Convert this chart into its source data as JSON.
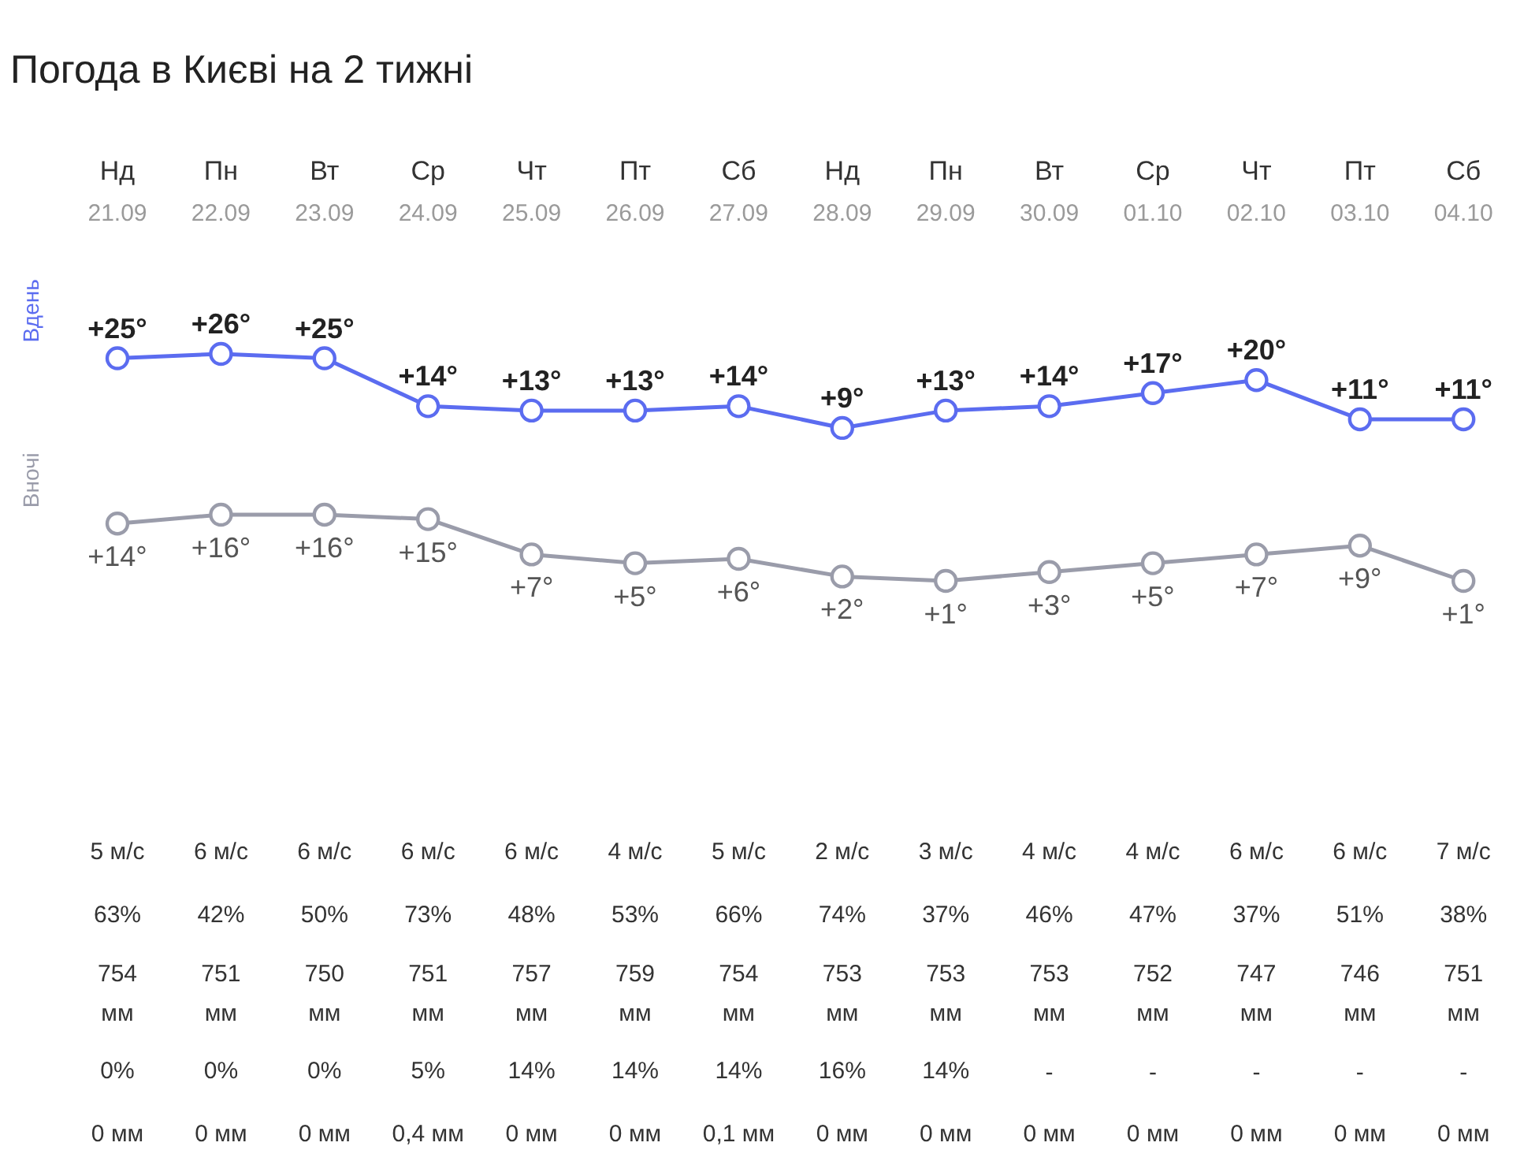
{
  "chart_data": [
    {
      "type": "line",
      "title": "Погода в Києві на 2 тижні",
      "categories": [
        "Нд\n21.09",
        "Пн\n22.09",
        "Вт\n23.09",
        "Ср\n24.09",
        "Чт\n25.09",
        "Пт\n26.09",
        "Сб\n27.09",
        "Нд\n28.09",
        "Пн\n29.09",
        "Вт\n30.09",
        "Ср\n01.10",
        "Чт\n02.10",
        "Пт\n03.10",
        "Сб\n04.10"
      ],
      "series": [
        {
          "name": "Вдень",
          "color": "#5b6cf0",
          "values": [
            25,
            26,
            25,
            14,
            13,
            13,
            14,
            9,
            13,
            14,
            17,
            20,
            11,
            11
          ],
          "value_labels": [
            "+25°",
            "+26°",
            "+25°",
            "+14°",
            "+13°",
            "+13°",
            "+14°",
            "+9°",
            "+13°",
            "+14°",
            "+17°",
            "+20°",
            "+11°",
            "+11°"
          ]
        }
      ],
      "marker": "circle",
      "legend": "left",
      "tick_labels": "x"
    },
    {
      "type": "line",
      "categories": [
        null,
        null,
        null,
        null,
        null,
        null,
        null,
        null,
        null,
        null,
        null,
        null,
        null,
        null
      ],
      "series": [
        {
          "name": "Вночі",
          "color": "#9a9caa",
          "values": [
            14,
            16,
            16,
            15,
            7,
            5,
            6,
            2,
            1,
            3,
            5,
            7,
            9,
            1
          ],
          "value_labels": [
            "+14°",
            "+16°",
            "+16°",
            "+15°",
            "+7°",
            "+5°",
            "+6°",
            "+2°",
            "+1°",
            "+3°",
            "+5°",
            "+7°",
            "+9°",
            "+1°"
          ]
        }
      ],
      "marker": "circle",
      "legend": "left",
      "annotations": [
        "5 м/с",
        "6 м/с",
        "6 м/с",
        "6 м/с",
        "6 м/с",
        "4 м/с",
        "5 м/с",
        "2 м/с",
        "3 м/с",
        "4 м/с",
        "4 м/с",
        "6 м/с",
        "6 м/с",
        "7 м/с",
        "63%",
        "42%",
        "50%",
        "73%",
        "48%",
        "53%",
        "66%",
        "74%",
        "37%",
        "46%",
        "47%",
        "37%",
        "51%",
        "38%",
        "754\nмм",
        "751\nмм",
        "750\nмм",
        "751\nмм",
        "757\nмм",
        "759\nмм",
        "754\nмм",
        "753\nмм",
        "753\nмм",
        "753\nмм",
        "752\nмм",
        "747\nмм",
        "746\nмм",
        "751\nмм",
        "0%",
        "0%",
        "0%",
        "5%",
        "14%",
        "14%",
        "14%",
        "16%",
        "14%",
        "-",
        "-",
        "-",
        "-",
        "-",
        "0 мм",
        "0 мм",
        "0 мм",
        "0,4 мм",
        "0 мм",
        "0 мм",
        "0,1 мм",
        "0 мм",
        "0 мм",
        "0 мм",
        "0 мм",
        "0 мм",
        "0 мм",
        "0 мм"
      ]
    }
  ]
}
